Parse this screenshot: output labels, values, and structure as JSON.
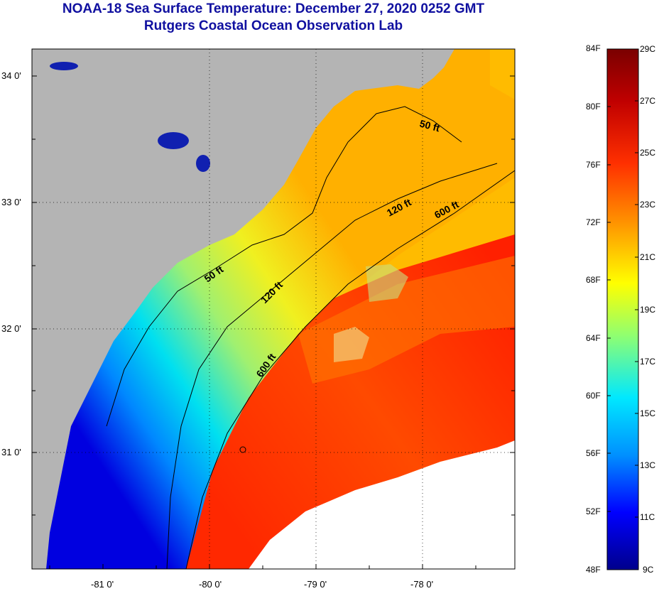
{
  "header": {
    "title": "NOAA-18 Sea Surface Temperature:  December 27, 2020 0252 GMT",
    "subtitle": "Rutgers Coastal Ocean Observation Lab"
  },
  "map": {
    "lat_labels": [
      "34 0'",
      "33 0'",
      "32 0'",
      "31 0'"
    ],
    "lon_labels": [
      "-81 0'",
      "-80 0'",
      "-79 0'",
      "-78 0'"
    ],
    "contour_labels": [
      "50 ft",
      "50 ft",
      "120 ft",
      "120 ft",
      "600 ft",
      "600 ft"
    ],
    "colors": {
      "land": "#b4b4b4",
      "cloud": "#ffffff",
      "frame": "#000000"
    }
  },
  "colorbar": {
    "fahrenheit_labels": [
      "84F",
      "80F",
      "76F",
      "72F",
      "68F",
      "64F",
      "60F",
      "56F",
      "52F",
      "48F"
    ],
    "celsius_labels": [
      "29C",
      "27C",
      "25C",
      "23C",
      "21C",
      "19C",
      "17C",
      "15C",
      "13C",
      "11C",
      "9C"
    ],
    "gradient": [
      "#00008c",
      "#0000ff",
      "#0090ff",
      "#00e8ff",
      "#c8ff40",
      "#ffff00",
      "#ff9000",
      "#ff3000",
      "#c00000",
      "#7a0000"
    ]
  }
}
